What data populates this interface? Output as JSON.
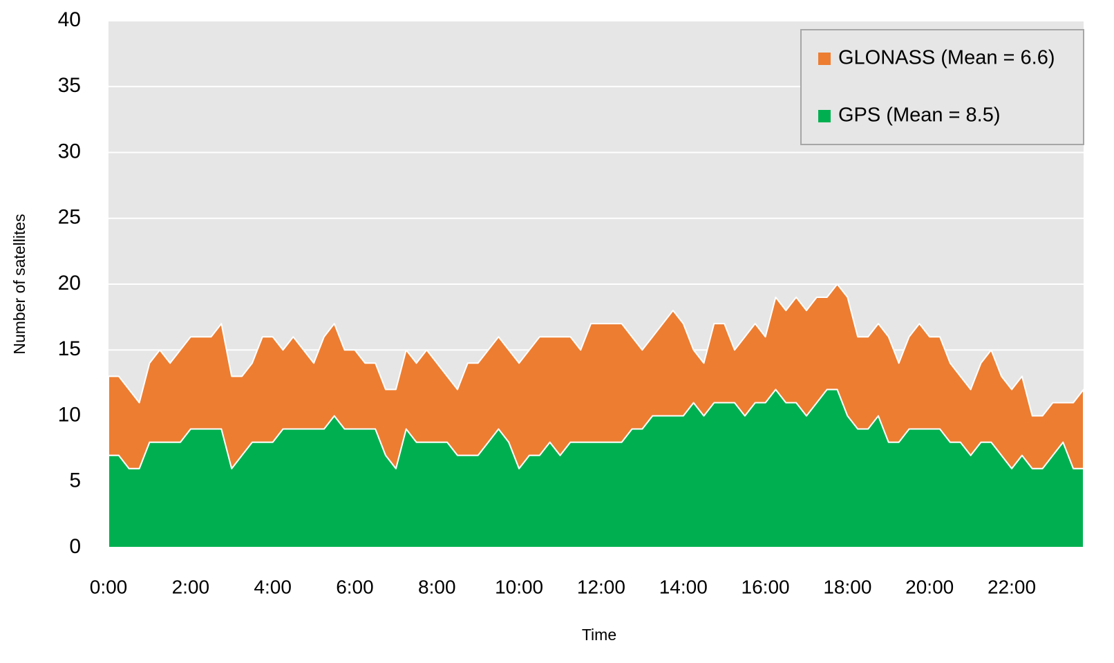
{
  "chart_data": {
    "type": "stacked_area",
    "x_label": "Time",
    "y_label": "Number of satellites",
    "x": [
      0,
      0.25,
      0.5,
      0.75,
      1,
      1.25,
      1.5,
      1.75,
      2,
      2.25,
      2.5,
      2.75,
      3,
      3.25,
      3.5,
      3.75,
      4,
      4.25,
      4.5,
      4.75,
      5,
      5.25,
      5.5,
      5.75,
      6,
      6.25,
      6.5,
      6.75,
      7,
      7.25,
      7.5,
      7.75,
      8,
      8.25,
      8.5,
      8.75,
      9,
      9.25,
      9.5,
      9.75,
      10,
      10.25,
      10.5,
      10.75,
      11,
      11.25,
      11.5,
      11.75,
      12,
      12.25,
      12.5,
      12.75,
      13,
      13.25,
      13.5,
      13.75,
      14,
      14.25,
      14.5,
      14.75,
      15,
      15.25,
      15.5,
      15.75,
      16,
      16.25,
      16.5,
      16.75,
      17,
      17.25,
      17.5,
      17.75,
      18,
      18.25,
      18.5,
      18.75,
      19,
      19.25,
      19.5,
      19.75,
      20,
      20.25,
      20.5,
      20.75,
      21,
      21.25,
      21.5,
      21.75,
      22,
      22.25,
      22.5,
      22.75,
      23,
      23.25,
      23.5,
      23.75
    ],
    "series": [
      {
        "name": "GPS (Mean = 8.5)",
        "color": "#00b050",
        "values": [
          7,
          7,
          6,
          6,
          8,
          8,
          8,
          8,
          9,
          9,
          9,
          9,
          6,
          7,
          8,
          8,
          8,
          9,
          9,
          9,
          9,
          9,
          10,
          9,
          9,
          9,
          9,
          7,
          6,
          9,
          8,
          8,
          8,
          8,
          7,
          7,
          7,
          8,
          9,
          8,
          6,
          7,
          7,
          8,
          7,
          8,
          8,
          8,
          8,
          8,
          8,
          9,
          9,
          10,
          10,
          10,
          10,
          11,
          10,
          11,
          11,
          11,
          10,
          11,
          11,
          12,
          11,
          11,
          10,
          11,
          12,
          12,
          10,
          9,
          9,
          10,
          8,
          8,
          9,
          9,
          9,
          9,
          8,
          8,
          7,
          8,
          8,
          7,
          6,
          7,
          6,
          6,
          7,
          8,
          6,
          6
        ]
      },
      {
        "name": "GLONASS (Mean = 6.6)",
        "color": "#ed7d31",
        "values": [
          6,
          6,
          6,
          5,
          6,
          7,
          6,
          7,
          7,
          7,
          7,
          8,
          7,
          6,
          6,
          8,
          8,
          6,
          7,
          6,
          5,
          7,
          7,
          6,
          6,
          5,
          5,
          5,
          6,
          6,
          6,
          7,
          6,
          5,
          5,
          7,
          7,
          7,
          7,
          7,
          8,
          8,
          9,
          8,
          9,
          8,
          7,
          9,
          9,
          9,
          9,
          7,
          6,
          6,
          7,
          8,
          7,
          4,
          4,
          6,
          6,
          4,
          6,
          6,
          5,
          7,
          7,
          8,
          8,
          8,
          7,
          8,
          9,
          7,
          7,
          7,
          8,
          6,
          7,
          8,
          7,
          7,
          6,
          5,
          5,
          6,
          7,
          6,
          6,
          6,
          4,
          4,
          4,
          3,
          5,
          6
        ]
      }
    ],
    "xlim": [
      0,
      23.75
    ],
    "xticks": [
      {
        "value": 0,
        "label": "0:00"
      },
      {
        "value": 2,
        "label": "2:00"
      },
      {
        "value": 4,
        "label": "4:00"
      },
      {
        "value": 6,
        "label": "6:00"
      },
      {
        "value": 8,
        "label": "8:00"
      },
      {
        "value": 10,
        "label": "10:00"
      },
      {
        "value": 12,
        "label": "12:00"
      },
      {
        "value": 14,
        "label": "14:00"
      },
      {
        "value": 16,
        "label": "16:00"
      },
      {
        "value": 18,
        "label": "18:00"
      },
      {
        "value": 20,
        "label": "20:00"
      },
      {
        "value": 22,
        "label": "22:00"
      }
    ],
    "ylim": [
      0,
      40
    ],
    "yticks": [
      0,
      5,
      10,
      15,
      20,
      25,
      30,
      35,
      40
    ],
    "grid": true,
    "legend": "upper right"
  }
}
